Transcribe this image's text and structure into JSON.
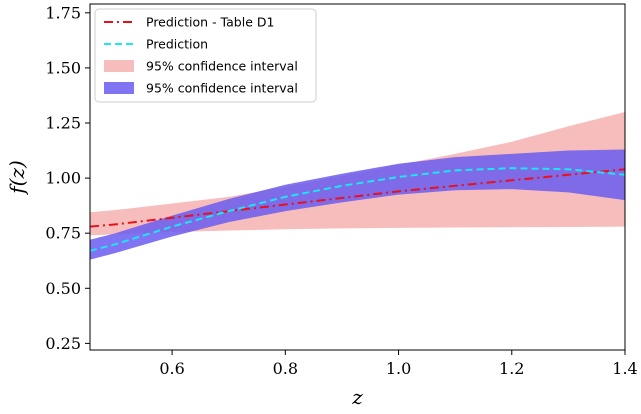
{
  "chart_data": {
    "type": "line",
    "title": "",
    "xlabel": "z",
    "ylabel": "f(z)",
    "xlim": [
      0.455,
      1.4
    ],
    "ylim": [
      0.22,
      1.79
    ],
    "x_ticks": [
      0.6,
      0.8,
      1.0,
      1.2,
      1.4
    ],
    "x_tick_labels": [
      "0.6",
      "0.8",
      "1.0",
      "1.2",
      "1.4"
    ],
    "y_ticks": [
      0.25,
      0.5,
      0.75,
      1.0,
      1.25,
      1.5,
      1.75
    ],
    "y_tick_labels": [
      "0.25",
      "0.50",
      "0.75",
      "1.00",
      "1.25",
      "1.50",
      "1.75"
    ],
    "grid": false,
    "legend_position": "top-left",
    "bands": [
      {
        "name": "95% confidence interval",
        "color": "#f4a5a5",
        "x": [
          0.455,
          0.5,
          0.6,
          0.7,
          0.8,
          0.9,
          1.0,
          1.1,
          1.2,
          1.3,
          1.4
        ],
        "lower": [
          0.74,
          0.745,
          0.755,
          0.762,
          0.768,
          0.772,
          0.774,
          0.776,
          0.777,
          0.778,
          0.78
        ],
        "upper": [
          0.845,
          0.855,
          0.885,
          0.915,
          0.96,
          1.01,
          1.06,
          1.11,
          1.165,
          1.235,
          1.3
        ]
      },
      {
        "name": "95% confidence interval",
        "color": "#6a5cf0",
        "x": [
          0.455,
          0.5,
          0.6,
          0.7,
          0.8,
          0.9,
          1.0,
          1.1,
          1.2,
          1.3,
          1.4
        ],
        "lower": [
          0.63,
          0.66,
          0.735,
          0.8,
          0.85,
          0.89,
          0.925,
          0.945,
          0.95,
          0.935,
          0.9
        ],
        "upper": [
          0.72,
          0.75,
          0.83,
          0.905,
          0.97,
          1.02,
          1.065,
          1.095,
          1.11,
          1.125,
          1.13
        ]
      }
    ],
    "series": [
      {
        "name": "Prediction - Table D1",
        "color": "#e8101a",
        "style": "dash-dot",
        "x": [
          0.455,
          0.5,
          0.6,
          0.7,
          0.8,
          0.9,
          1.0,
          1.1,
          1.2,
          1.3,
          1.4
        ],
        "values": [
          0.78,
          0.79,
          0.82,
          0.85,
          0.88,
          0.91,
          0.94,
          0.965,
          0.99,
          1.015,
          1.04
        ]
      },
      {
        "name": "Prediction",
        "color": "#1de5f2",
        "style": "dashed",
        "x": [
          0.455,
          0.5,
          0.6,
          0.7,
          0.8,
          0.9,
          1.0,
          1.1,
          1.2,
          1.3,
          1.4
        ],
        "values": [
          0.67,
          0.7,
          0.78,
          0.85,
          0.915,
          0.965,
          1.005,
          1.035,
          1.045,
          1.04,
          1.015
        ]
      }
    ]
  }
}
